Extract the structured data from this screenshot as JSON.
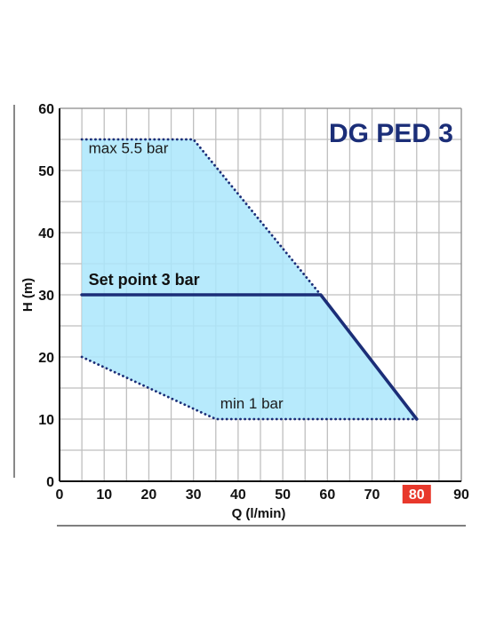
{
  "chart_data": {
    "type": "area",
    "title": "DG PED 3",
    "xlabel": "Q (l/min)",
    "ylabel": "H (m)",
    "xlim": [
      0,
      90
    ],
    "ylim": [
      0,
      60
    ],
    "x_ticks": [
      "0",
      "10",
      "20",
      "30",
      "40",
      "50",
      "60",
      "70",
      "80",
      "90"
    ],
    "y_ticks": [
      "0",
      "10",
      "20",
      "30",
      "40",
      "50",
      "60"
    ],
    "highlighted_x_tick": "80",
    "grid": true,
    "series": [
      {
        "name": "max 5.5 bar",
        "style": "dotted",
        "x": [
          5,
          30,
          58.5
        ],
        "y": [
          55,
          55,
          30
        ]
      },
      {
        "name": "Set point 3 bar",
        "style": "solid",
        "x": [
          5,
          58.5,
          80
        ],
        "y": [
          30,
          30,
          10
        ]
      },
      {
        "name": "min 1 bar",
        "style": "dotted",
        "x": [
          5,
          35,
          80
        ],
        "y": [
          20,
          10,
          10
        ]
      }
    ],
    "region": {
      "x": [
        5,
        30,
        58.5,
        80,
        35,
        5
      ],
      "y": [
        55,
        55,
        30,
        10,
        10,
        20
      ]
    },
    "annotations": [
      {
        "text": "max 5.5 bar",
        "x": 6.5,
        "y": 52.8
      },
      {
        "text": "Set point 3 bar",
        "x": 6.5,
        "y": 31.6
      },
      {
        "text": "min 1 bar",
        "x": 36,
        "y": 11.7
      }
    ],
    "colors": {
      "fill": "#aae6fb",
      "line": "#1b2e78",
      "grid": "#bfbfbf",
      "title": "#1b2e78",
      "highlight": "#e8382b"
    }
  }
}
